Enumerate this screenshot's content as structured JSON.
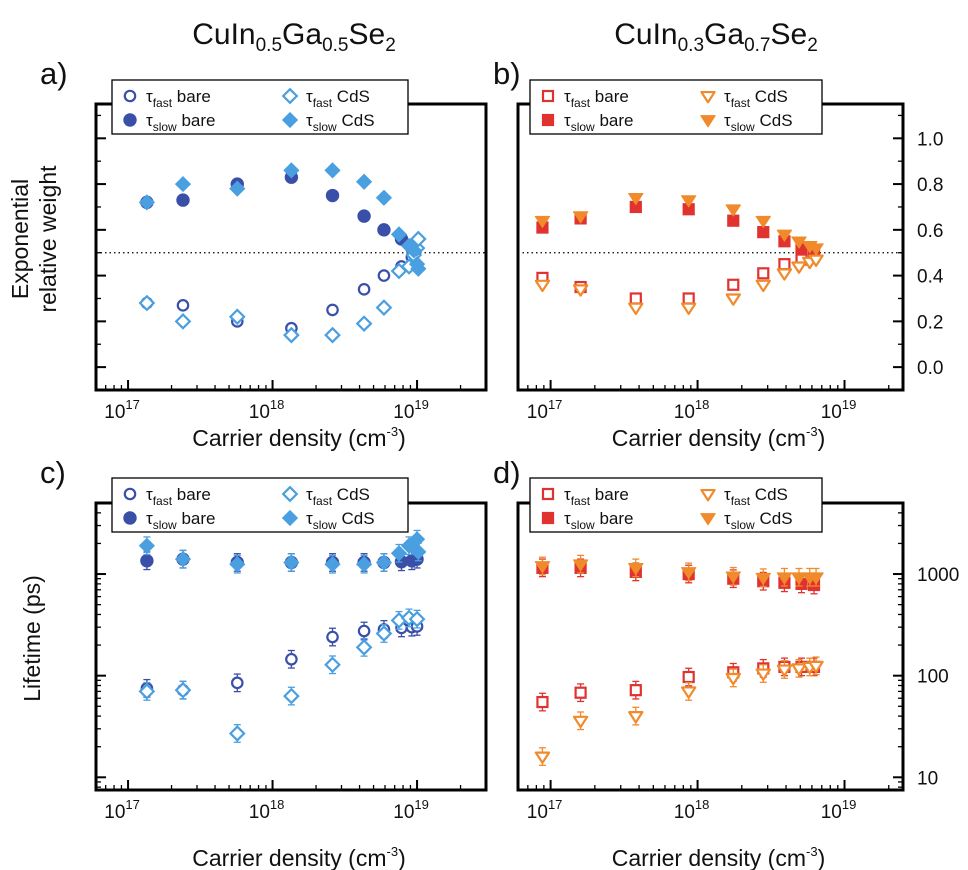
{
  "columns": [
    {
      "base": "CuIn",
      "s1": "0.5",
      "mid": "Ga",
      "s2": "0.5",
      "end": "Se",
      "s3": "2"
    },
    {
      "base": "CuIn",
      "s1": "0.3",
      "mid": "Ga",
      "s2": "0.7",
      "end": "Se",
      "s3": "2"
    }
  ],
  "chart_data": [
    {
      "panel": "a)",
      "type": "scatter",
      "xscale": "log",
      "xlim": [
        6e+16,
        3e+19
      ],
      "ylim": [
        -0.1,
        1.15
      ],
      "xlabel": "Carrier density (cm",
      "xlabel_sup": "-3",
      "xlabel_end": ")",
      "ylabel_lines": [
        "Exponential",
        "relative weight"
      ],
      "x_tick_values": [
        1e+17,
        1e+18,
        1e+19
      ],
      "x_tick_labels": [
        {
          "base": "10",
          "exp": "17"
        },
        {
          "base": "10",
          "exp": "18"
        },
        {
          "base": "10",
          "exp": "19"
        }
      ],
      "y_ticks": [
        0.0,
        0.2,
        0.4,
        0.6,
        0.8,
        1.0
      ],
      "y_tick_labels": [],
      "reference_line": 0.5,
      "legend": [
        {
          "tau": "τ",
          "sub": "fast",
          "label": " bare",
          "marker": "circle-open"
        },
        {
          "tau": "τ",
          "sub": "slow",
          "label": " bare",
          "marker": "circle-filled"
        },
        {
          "tau": "τ",
          "sub": "fast",
          "label": " CdS",
          "marker": "diamond-open"
        },
        {
          "tau": "τ",
          "sub": "slow",
          "label": " CdS",
          "marker": "diamond-filled"
        }
      ],
      "series": [
        {
          "legend_index": 0,
          "marker": "circle-open",
          "color": "#3a4fa8",
          "points": [
            [
              1.35e+17,
              0.28
            ],
            [
              2.4e+17,
              0.27
            ],
            [
              5.7e+17,
              0.2
            ],
            [
              1.35e+18,
              0.17
            ],
            [
              2.6e+18,
              0.25
            ],
            [
              4.3e+18,
              0.34
            ],
            [
              5.9e+18,
              0.4
            ],
            [
              7.8e+18,
              0.44
            ],
            [
              9.2e+18,
              0.48
            ]
          ]
        },
        {
          "legend_index": 1,
          "marker": "circle-filled",
          "color": "#3a4fa8",
          "points": [
            [
              1.35e+17,
              0.72
            ],
            [
              2.4e+17,
              0.73
            ],
            [
              5.7e+17,
              0.8
            ],
            [
              1.35e+18,
              0.83
            ],
            [
              2.6e+18,
              0.75
            ],
            [
              4.3e+18,
              0.66
            ],
            [
              5.9e+18,
              0.6
            ],
            [
              7.8e+18,
              0.56
            ],
            [
              9.2e+18,
              0.52
            ]
          ]
        },
        {
          "legend_index": 2,
          "marker": "diamond-open",
          "color": "#4a9fe0",
          "points": [
            [
              1.35e+17,
              0.28
            ],
            [
              2.4e+17,
              0.2
            ],
            [
              5.7e+17,
              0.22
            ],
            [
              1.35e+18,
              0.14
            ],
            [
              2.6e+18,
              0.14
            ],
            [
              4.3e+18,
              0.19
            ],
            [
              5.9e+18,
              0.26
            ],
            [
              7.5e+18,
              0.42
            ],
            [
              8.8e+18,
              0.44
            ],
            [
              9.5e+18,
              0.49
            ],
            [
              1e+19,
              0.52
            ],
            [
              1.02e+19,
              0.56
            ]
          ]
        },
        {
          "legend_index": 3,
          "marker": "diamond-filled",
          "color": "#4a9fe0",
          "points": [
            [
              1.35e+17,
              0.72
            ],
            [
              2.4e+17,
              0.8
            ],
            [
              5.7e+17,
              0.78
            ],
            [
              1.35e+18,
              0.86
            ],
            [
              2.6e+18,
              0.86
            ],
            [
              4.3e+18,
              0.81
            ],
            [
              5.9e+18,
              0.74
            ],
            [
              7.5e+18,
              0.58
            ],
            [
              8.8e+18,
              0.53
            ],
            [
              9.5e+18,
              0.51
            ],
            [
              1e+19,
              0.45
            ],
            [
              1.02e+19,
              0.43
            ]
          ]
        }
      ]
    },
    {
      "panel": "b)",
      "type": "scatter",
      "xscale": "log",
      "xlim": [
        6e+16,
        2.5e+19
      ],
      "ylim": [
        -0.1,
        1.15
      ],
      "xlabel": "Carrier density (cm",
      "xlabel_sup": "-3",
      "xlabel_end": ")",
      "ylabel_lines": [],
      "x_tick_values": [
        1e+17,
        1e+18,
        1e+19
      ],
      "x_tick_labels": [
        {
          "base": "10",
          "exp": "17"
        },
        {
          "base": "10",
          "exp": "18"
        },
        {
          "base": "10",
          "exp": "19"
        }
      ],
      "y_ticks": [
        0.0,
        0.2,
        0.4,
        0.6,
        0.8,
        1.0
      ],
      "y_tick_labels": [
        "0.0",
        "0.2",
        "0.4",
        "0.6",
        "0.8",
        "1.0"
      ],
      "reference_line": 0.5,
      "legend": [
        {
          "tau": "τ",
          "sub": "fast",
          "label": " bare",
          "marker": "square-open"
        },
        {
          "tau": "τ",
          "sub": "slow",
          "label": " bare",
          "marker": "square-filled"
        },
        {
          "tau": "τ",
          "sub": "fast",
          "label": " CdS",
          "marker": "triangle-open"
        },
        {
          "tau": "τ",
          "sub": "slow",
          "label": " CdS",
          "marker": "triangle-filled"
        }
      ],
      "series": [
        {
          "legend_index": 0,
          "marker": "square-open",
          "color": "#e0322e",
          "points": [
            [
              8.8e+16,
              0.39
            ],
            [
              1.6e+17,
              0.35
            ],
            [
              3.8e+17,
              0.3
            ],
            [
              8.7e+17,
              0.3
            ],
            [
              1.75e+18,
              0.36
            ],
            [
              2.8e+18,
              0.41
            ],
            [
              3.9e+18,
              0.45
            ],
            [
              5.1e+18,
              0.47
            ],
            [
              6.2e+18,
              0.49
            ]
          ]
        },
        {
          "legend_index": 1,
          "marker": "square-filled",
          "color": "#e0322e",
          "points": [
            [
              8.8e+16,
              0.61
            ],
            [
              1.6e+17,
              0.65
            ],
            [
              3.8e+17,
              0.7
            ],
            [
              8.7e+17,
              0.69
            ],
            [
              1.75e+18,
              0.64
            ],
            [
              2.8e+18,
              0.59
            ],
            [
              3.9e+18,
              0.55
            ],
            [
              5.1e+18,
              0.52
            ],
            [
              6.2e+18,
              0.5
            ]
          ]
        },
        {
          "legend_index": 2,
          "marker": "triangle-open",
          "color": "#f08a2a",
          "points": [
            [
              8.8e+16,
              0.36
            ],
            [
              1.6e+17,
              0.34
            ],
            [
              3.8e+17,
              0.26
            ],
            [
              8.7e+17,
              0.26
            ],
            [
              1.75e+18,
              0.3
            ],
            [
              2.8e+18,
              0.36
            ],
            [
              3.9e+18,
              0.41
            ],
            [
              4.9e+18,
              0.44
            ],
            [
              5.8e+18,
              0.46
            ],
            [
              6.4e+18,
              0.47
            ]
          ]
        },
        {
          "legend_index": 3,
          "marker": "triangle-filled",
          "color": "#f08a2a",
          "points": [
            [
              8.8e+16,
              0.64
            ],
            [
              1.6e+17,
              0.66
            ],
            [
              3.8e+17,
              0.74
            ],
            [
              8.7e+17,
              0.73
            ],
            [
              1.75e+18,
              0.69
            ],
            [
              2.8e+18,
              0.64
            ],
            [
              3.9e+18,
              0.58
            ],
            [
              4.9e+18,
              0.55
            ],
            [
              5.8e+18,
              0.53
            ],
            [
              6.4e+18,
              0.52
            ]
          ]
        }
      ]
    },
    {
      "panel": "c)",
      "type": "scatter",
      "xscale": "log",
      "yscale": "log",
      "xlim": [
        6e+16,
        3e+19
      ],
      "ylim": [
        7.5,
        5000
      ],
      "xlabel": "Carrier density (cm",
      "xlabel_sup": "-3",
      "xlabel_end": ")",
      "ylabel_lines": [
        "Lifetime (ps)"
      ],
      "x_tick_values": [
        1e+17,
        1e+18,
        1e+19
      ],
      "x_tick_labels": [
        {
          "base": "10",
          "exp": "17"
        },
        {
          "base": "10",
          "exp": "18"
        },
        {
          "base": "10",
          "exp": "19"
        }
      ],
      "y_ticks": [
        10,
        100,
        1000
      ],
      "y_tick_labels": [],
      "legend": [
        {
          "tau": "τ",
          "sub": "fast",
          "label": " bare",
          "marker": "circle-open"
        },
        {
          "tau": "τ",
          "sub": "slow",
          "label": " bare",
          "marker": "circle-filled"
        },
        {
          "tau": "τ",
          "sub": "fast",
          "label": " CdS",
          "marker": "diamond-open"
        },
        {
          "tau": "τ",
          "sub": "slow",
          "label": " CdS",
          "marker": "diamond-filled"
        }
      ],
      "series": [
        {
          "legend_index": 0,
          "marker": "circle-open",
          "color": "#3a4fa8",
          "points": [
            [
              1.35e+17,
              75
            ],
            [
              2.4e+17,
              72
            ],
            [
              5.7e+17,
              85
            ],
            [
              1.35e+18,
              145
            ],
            [
              2.6e+18,
              240
            ],
            [
              4.3e+18,
              275
            ],
            [
              5.9e+18,
              285
            ],
            [
              7.8e+18,
              295
            ],
            [
              9.2e+18,
              300
            ],
            [
              1e+19,
              305
            ]
          ]
        },
        {
          "legend_index": 1,
          "marker": "circle-filled",
          "color": "#3a4fa8",
          "points": [
            [
              1.35e+17,
              1350
            ],
            [
              2.4e+17,
              1400
            ],
            [
              5.7e+17,
              1300
            ],
            [
              1.35e+18,
              1300
            ],
            [
              2.6e+18,
              1300
            ],
            [
              4.3e+18,
              1300
            ],
            [
              5.9e+18,
              1300
            ],
            [
              7.8e+18,
              1320
            ],
            [
              9.2e+18,
              1350
            ],
            [
              1e+19,
              1400
            ]
          ]
        },
        {
          "legend_index": 2,
          "marker": "diamond-open",
          "color": "#4a9fe0",
          "points": [
            [
              1.35e+17,
              70
            ],
            [
              2.4e+17,
              72
            ],
            [
              5.7e+17,
              27
            ],
            [
              1.35e+18,
              63
            ],
            [
              2.6e+18,
              128
            ],
            [
              4.3e+18,
              190
            ],
            [
              5.9e+18,
              260
            ],
            [
              7.5e+18,
              350
            ],
            [
              8.8e+18,
              370
            ],
            [
              1e+19,
              360
            ]
          ]
        },
        {
          "legend_index": 3,
          "marker": "diamond-filled",
          "color": "#4a9fe0",
          "points": [
            [
              1.35e+17,
              1900
            ],
            [
              2.4e+17,
              1400
            ],
            [
              5.7e+17,
              1250
            ],
            [
              1.35e+18,
              1300
            ],
            [
              2.6e+18,
              1250
            ],
            [
              4.3e+18,
              1250
            ],
            [
              5.9e+18,
              1300
            ],
            [
              7.5e+18,
              1600
            ],
            [
              8.8e+18,
              1900
            ],
            [
              1e+19,
              2200
            ],
            [
              1.02e+19,
              1650
            ]
          ]
        }
      ]
    },
    {
      "panel": "d)",
      "type": "scatter",
      "xscale": "log",
      "yscale": "log",
      "xlim": [
        6e+16,
        2.5e+19
      ],
      "ylim": [
        7.5,
        5000
      ],
      "xlabel": "Carrier density (cm",
      "xlabel_sup": "-3",
      "xlabel_end": ")",
      "ylabel_lines": [],
      "x_tick_values": [
        1e+17,
        1e+18,
        1e+19
      ],
      "x_tick_labels": [
        {
          "base": "10",
          "exp": "17"
        },
        {
          "base": "10",
          "exp": "18"
        },
        {
          "base": "10",
          "exp": "19"
        }
      ],
      "y_ticks": [
        10,
        100,
        1000
      ],
      "y_tick_labels": [
        "10",
        "100",
        "1000"
      ],
      "legend": [
        {
          "tau": "τ",
          "sub": "fast",
          "label": " bare",
          "marker": "square-open"
        },
        {
          "tau": "τ",
          "sub": "slow",
          "label": " bare",
          "marker": "square-filled"
        },
        {
          "tau": "τ",
          "sub": "fast",
          "label": " CdS",
          "marker": "triangle-open"
        },
        {
          "tau": "τ",
          "sub": "slow",
          "label": " CdS",
          "marker": "triangle-filled"
        }
      ],
      "series": [
        {
          "legend_index": 0,
          "marker": "square-open",
          "color": "#e0322e",
          "points": [
            [
              8.8e+16,
              55
            ],
            [
              1.6e+17,
              68
            ],
            [
              3.8e+17,
              72
            ],
            [
              8.7e+17,
              97
            ],
            [
              1.75e+18,
              108
            ],
            [
              2.8e+18,
              118
            ],
            [
              3.9e+18,
              122
            ],
            [
              5.1e+18,
              122
            ],
            [
              6.2e+18,
              122
            ]
          ]
        },
        {
          "legend_index": 1,
          "marker": "square-filled",
          "color": "#e0322e",
          "points": [
            [
              8.8e+16,
              1150
            ],
            [
              1.6e+17,
              1150
            ],
            [
              3.8e+17,
              1050
            ],
            [
              8.7e+17,
              1000
            ],
            [
              1.75e+18,
              900
            ],
            [
              2.8e+18,
              850
            ],
            [
              3.9e+18,
              820
            ],
            [
              5.1e+18,
              800
            ],
            [
              6.2e+18,
              780
            ]
          ]
        },
        {
          "legend_index": 2,
          "marker": "triangle-open",
          "color": "#f08a2a",
          "points": [
            [
              8.8e+16,
              16
            ],
            [
              1.6e+17,
              36
            ],
            [
              3.8e+17,
              40
            ],
            [
              8.7e+17,
              70
            ],
            [
              1.75e+18,
              95
            ],
            [
              2.8e+18,
              105
            ],
            [
              3.9e+18,
              115
            ],
            [
              4.9e+18,
              118
            ],
            [
              5.8e+18,
              122
            ],
            [
              6.4e+18,
              125
            ]
          ]
        },
        {
          "legend_index": 3,
          "marker": "triangle-filled",
          "color": "#f08a2a",
          "points": [
            [
              8.8e+16,
              1200
            ],
            [
              1.6e+17,
              1250
            ],
            [
              3.8e+17,
              1150
            ],
            [
              8.7e+17,
              1050
            ],
            [
              1.75e+18,
              950
            ],
            [
              2.8e+18,
              920
            ],
            [
              3.9e+18,
              930
            ],
            [
              4.9e+18,
              930
            ],
            [
              5.8e+18,
              930
            ],
            [
              6.4e+18,
              930
            ]
          ]
        }
      ]
    }
  ]
}
